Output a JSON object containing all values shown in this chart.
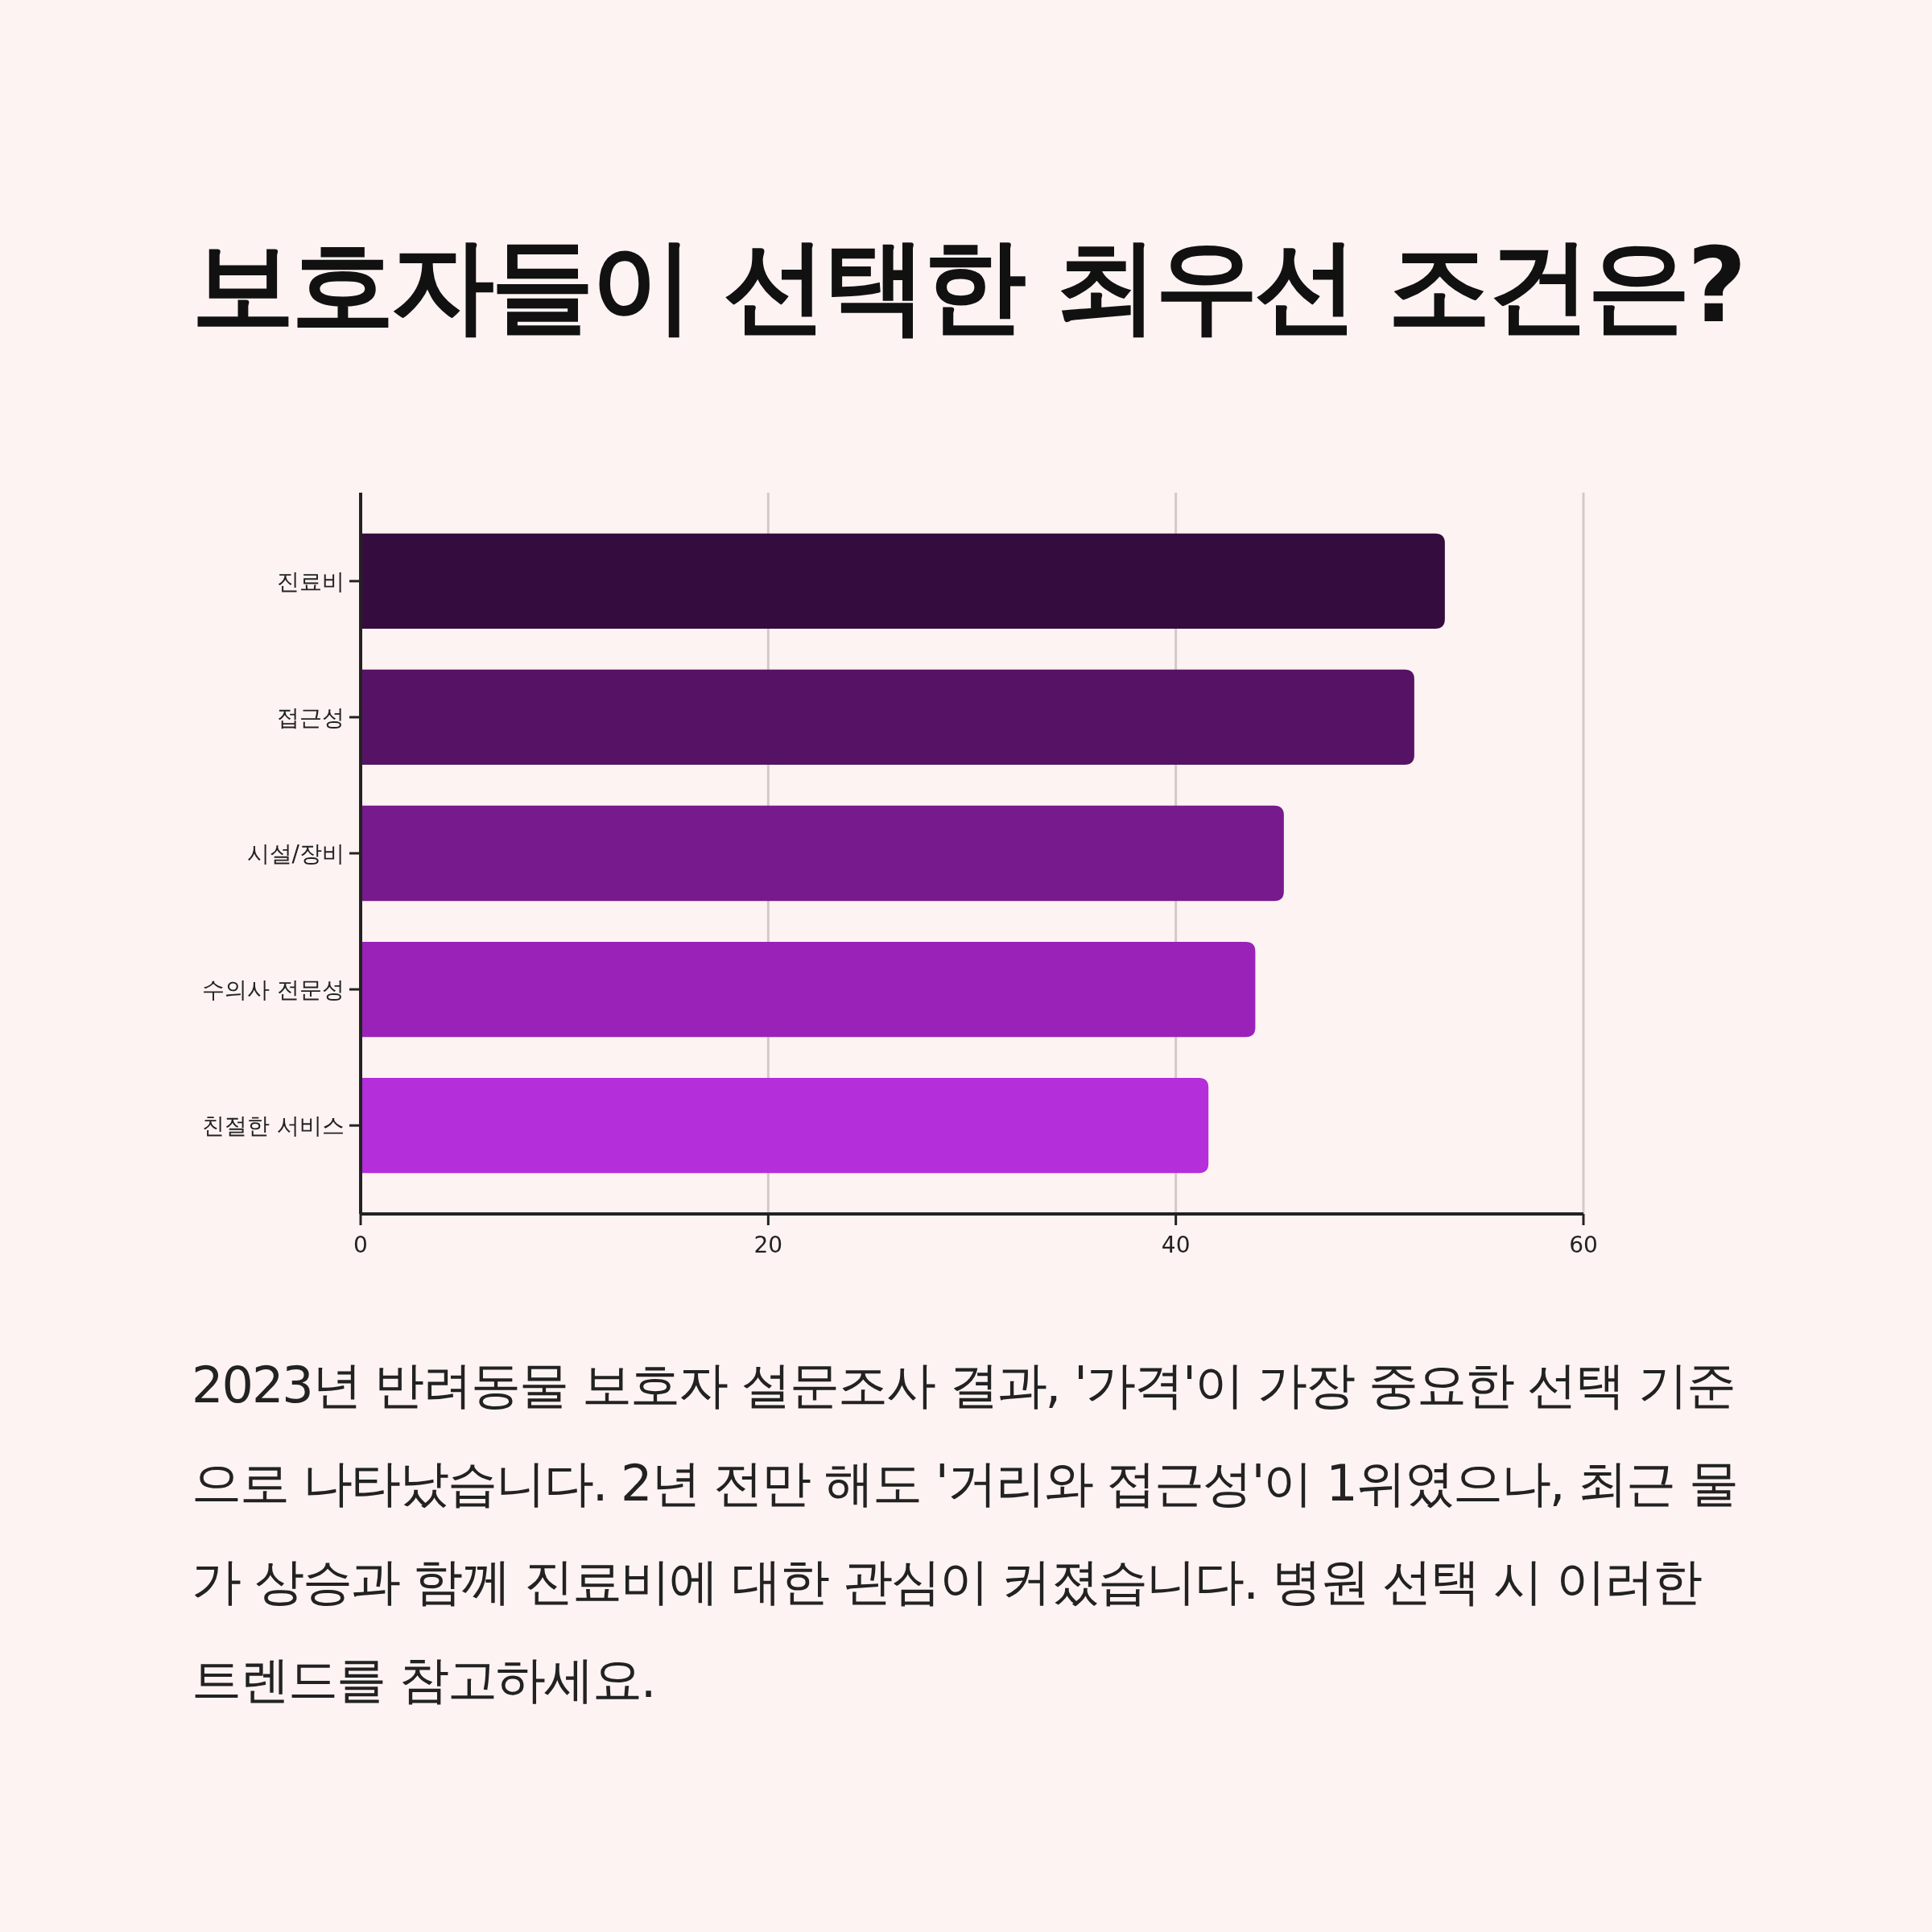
{
  "chart_data": {
    "type": "bar",
    "orientation": "horizontal",
    "title": "보호자들이 선택한 최우선 조건은?",
    "categories": [
      "진료비",
      "접근성",
      "시설/장비",
      "수의사 전문성",
      "친절한 서비스"
    ],
    "values": [
      53.2,
      51.7,
      45.3,
      43.9,
      41.6
    ],
    "colors": [
      "#350c3e",
      "#561365",
      "#761a8e",
      "#9a22b9",
      "#b42ed9"
    ],
    "xlim": [
      0,
      60
    ],
    "xticks": [
      0,
      20,
      40,
      60
    ],
    "grid": "x",
    "annotations": [
      "2023년 반려동물 보호자 설문조사 결과, '가격'이 가장 중요한 선택 기준으로 나타났습니다. 2년 전만 해도 '거리와 접근성'이 1위였으나, 최근 물가 상승과 함께 진료비에 대한 관심이 커졌습니다. 병원 선택 시 이러한 트렌드를 참고하세요."
    ]
  }
}
